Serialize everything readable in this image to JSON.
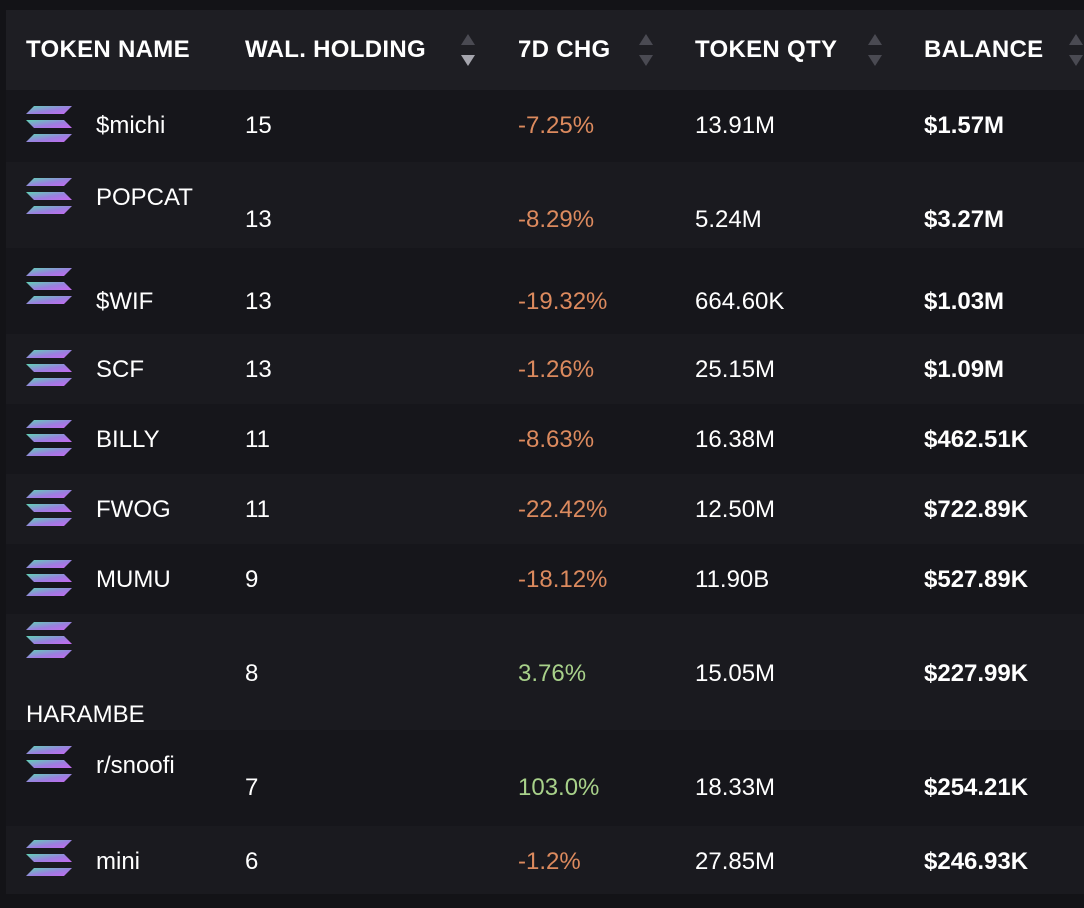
{
  "columns": {
    "token_name": "TOKEN NAME",
    "wallet_holding": "WAL. HOLDING",
    "change_7d": "7D CHG",
    "token_qty": "TOKEN QTY",
    "balance": "BALANCE"
  },
  "sort": {
    "active_column": "wallet_holding",
    "direction": "descending"
  },
  "colors": {
    "negative_change": "#dc8a5e",
    "positive_change": "#a8d18a",
    "logo_gradient": [
      "#5fd3b5",
      "#9b7fe0",
      "#c56af0"
    ]
  },
  "token_icon": "solana-logo-icon",
  "rows": [
    {
      "name": "$michi",
      "holding": "15",
      "change": "-7.25%",
      "trend": "negative",
      "qty": "13.91M",
      "balance": "$1.57M"
    },
    {
      "name": "POPCAT",
      "holding": "13",
      "change": "-8.29%",
      "trend": "negative",
      "qty": "5.24M",
      "balance": "$3.27M"
    },
    {
      "name": "$WIF",
      "holding": "13",
      "change": "-19.32%",
      "trend": "negative",
      "qty": "664.60K",
      "balance": "$1.03M"
    },
    {
      "name": "SCF",
      "holding": "13",
      "change": "-1.26%",
      "trend": "negative",
      "qty": "25.15M",
      "balance": "$1.09M"
    },
    {
      "name": "BILLY",
      "holding": "11",
      "change": "-8.63%",
      "trend": "negative",
      "qty": "16.38M",
      "balance": "$462.51K"
    },
    {
      "name": "FWOG",
      "holding": "11",
      "change": "-22.42%",
      "trend": "negative",
      "qty": "12.50M",
      "balance": "$722.89K"
    },
    {
      "name": "MUMU",
      "holding": "9",
      "change": "-18.12%",
      "trend": "negative",
      "qty": "11.90B",
      "balance": "$527.89K"
    },
    {
      "name": "HARAMBE",
      "holding": "8",
      "change": "3.76%",
      "trend": "positive",
      "qty": "15.05M",
      "balance": "$227.99K"
    },
    {
      "name": "r/snoofi",
      "holding": "7",
      "change": "103.0%",
      "trend": "positive",
      "qty": "18.33M",
      "balance": "$254.21K"
    },
    {
      "name": "mini",
      "holding": "6",
      "change": "-1.2%",
      "trend": "negative",
      "qty": "27.85M",
      "balance": "$246.93K"
    }
  ]
}
